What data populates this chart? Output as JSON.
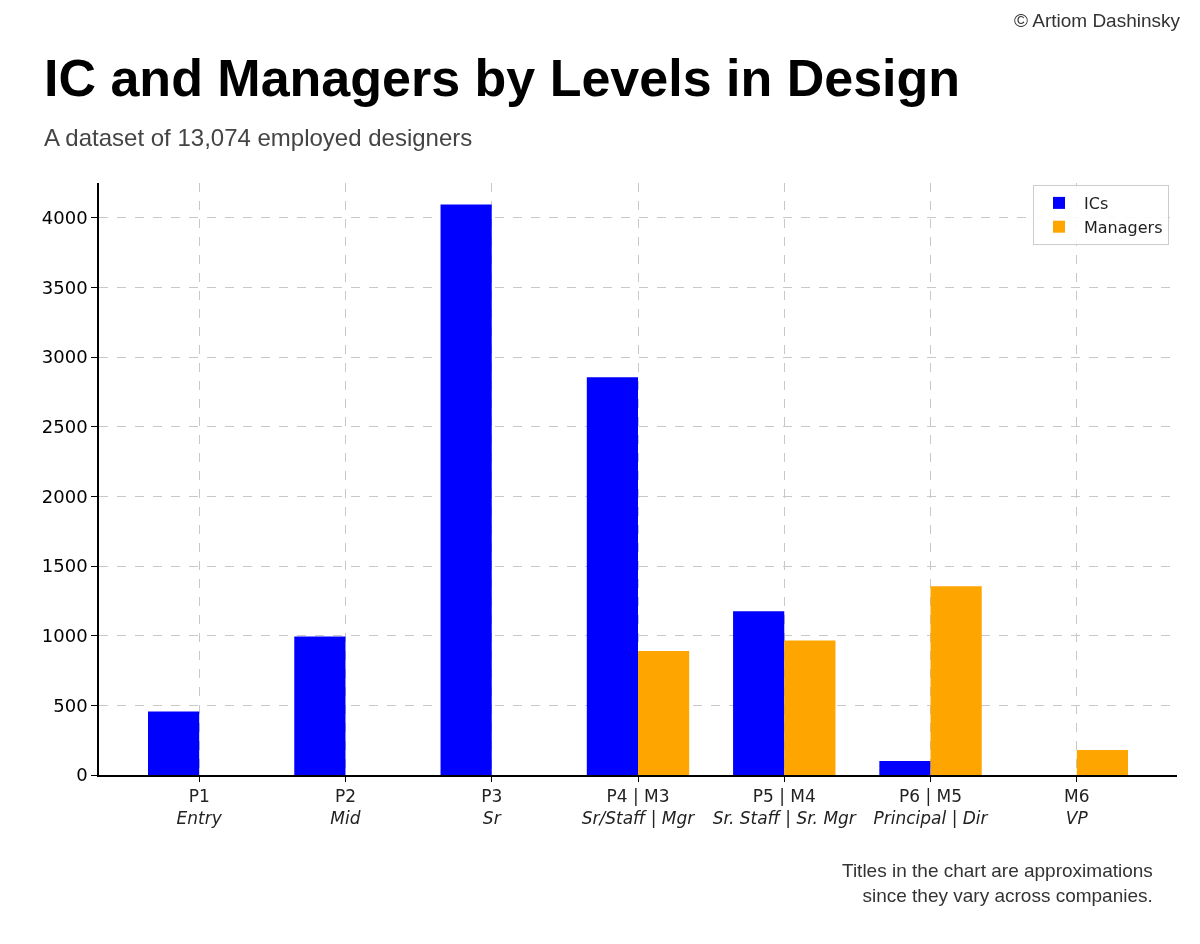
{
  "chart_data": {
    "type": "bar",
    "title": "IC and Managers by Levels in Design",
    "subtitle": "A dataset of 13,074 employed designers",
    "categories": [
      "P1\nEntry",
      "P2\nMid",
      "P3\nSr",
      "P4 | M3\nSr/Staff | Mgr",
      "P5 | M4\nSr. Staff | Sr. Mgr",
      "P6 | M5\nPrincipal | Dir",
      "M6\nVP"
    ],
    "series": [
      {
        "name": "ICs",
        "color": "#0000ff",
        "values": [
          455,
          995,
          4095,
          2855,
          1175,
          100,
          null
        ]
      },
      {
        "name": "Managers",
        "color": "#ffa500",
        "values": [
          null,
          null,
          null,
          890,
          965,
          1355,
          180
        ]
      }
    ],
    "ylim": [
      0,
      4250
    ],
    "yticks": [
      0,
      500,
      1000,
      1500,
      2000,
      2500,
      3000,
      3500,
      4000
    ],
    "grid": true,
    "legend": "top right",
    "annotations": [
      "© Artiom Dashinsky",
      "Titles in the chart are approximations\nsince they vary across companies."
    ]
  }
}
